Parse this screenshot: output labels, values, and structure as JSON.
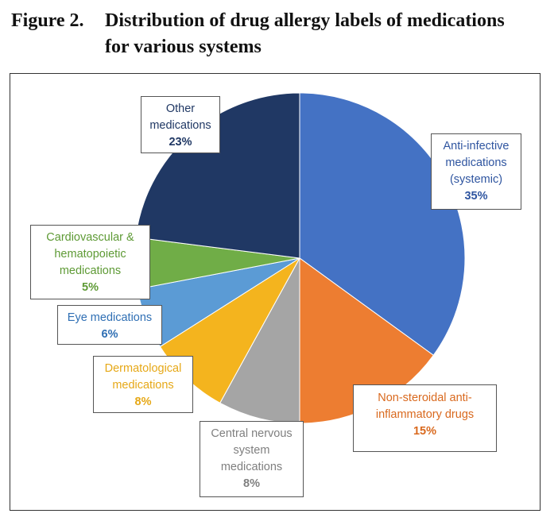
{
  "caption": {
    "number": "Figure 2.",
    "line1": "Distribution of drug allergy labels of medications",
    "line2": "for various systems"
  },
  "chart_data": {
    "type": "pie",
    "title": "Distribution of drug allergy labels of medications for various systems",
    "slices": [
      {
        "key": "anti_infective",
        "lines": [
          "Anti-infective",
          "medications",
          "(systemic)"
        ],
        "label": "Anti-infective medications (systemic)",
        "value": 35,
        "pct_text": "35%",
        "color": "#4472c4",
        "text_color": "#2f55a0"
      },
      {
        "key": "nsaid",
        "lines": [
          "Non-steroidal anti-",
          "inflammatory drugs"
        ],
        "label": "Non-steroidal anti-inflammatory drugs",
        "value": 15,
        "pct_text": "15%",
        "color": "#ed7d31",
        "text_color": "#d9691e"
      },
      {
        "key": "cns",
        "lines": [
          "Central nervous",
          "system",
          "medications"
        ],
        "label": "Central nervous system medications",
        "value": 8,
        "pct_text": "8%",
        "color": "#a5a5a5",
        "text_color": "#7f7f7f"
      },
      {
        "key": "dermatological",
        "lines": [
          "Dermatological",
          "medications"
        ],
        "label": "Dermatological medications",
        "value": 8,
        "pct_text": "8%",
        "color": "#f4b41e",
        "text_color": "#e6a817"
      },
      {
        "key": "eye",
        "lines": [
          "Eye medications"
        ],
        "label": "Eye medications",
        "value": 6,
        "pct_text": "6%",
        "color": "#5b9bd5",
        "text_color": "#2f6fb4"
      },
      {
        "key": "cardiovascular",
        "lines": [
          "Cardiovascular &",
          "hematopoietic",
          "medications"
        ],
        "label": "Cardiovascular & hematopoietic medications",
        "value": 5,
        "pct_text": "5%",
        "color": "#70ad47",
        "text_color": "#5e9a35"
      },
      {
        "key": "other",
        "lines": [
          "Other",
          "medications"
        ],
        "label": "Other medications",
        "value": 23,
        "pct_text": "23%",
        "color": "#203864",
        "text_color": "#203864"
      }
    ],
    "start": "top",
    "direction": "clockwise"
  }
}
